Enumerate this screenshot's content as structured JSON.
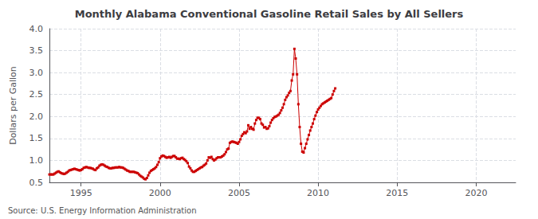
{
  "chart_data": {
    "type": "line",
    "title": "Monthly Alabama Conventional Gasoline Retail Sales by All Sellers",
    "ylabel": "Dollars per Gallon",
    "source": "Source: U.S. Energy Information Administration",
    "color": "#cc0000",
    "marker": "square",
    "line_style": "solid",
    "grid": true,
    "xlim": [
      1993.0,
      2022.5
    ],
    "ylim": [
      0.5,
      4.0
    ],
    "xticks": [
      1995,
      2000,
      2005,
      2010,
      2015,
      2020
    ],
    "yticks": [
      0.5,
      {
        "value": 1.0,
        "label": "1.0"
      },
      1.5,
      {
        "value": 2.0,
        "label": "2.0"
      },
      2.5,
      {
        "value": 3.0,
        "label": "3.0"
      },
      3.5,
      {
        "value": 4.0,
        "label": "4.0"
      }
    ],
    "x": [
      1993.0,
      1993.083,
      1993.167,
      1993.25,
      1993.333,
      1993.417,
      1993.5,
      1993.583,
      1993.667,
      1993.75,
      1993.833,
      1993.917,
      1994.0,
      1994.083,
      1994.167,
      1994.25,
      1994.333,
      1994.417,
      1994.5,
      1994.583,
      1994.667,
      1994.75,
      1994.833,
      1994.917,
      1995.0,
      1995.083,
      1995.167,
      1995.25,
      1995.333,
      1995.417,
      1995.5,
      1995.583,
      1995.667,
      1995.75,
      1995.833,
      1995.917,
      1996.0,
      1996.083,
      1996.167,
      1996.25,
      1996.333,
      1996.417,
      1996.5,
      1996.583,
      1996.667,
      1996.75,
      1996.833,
      1996.917,
      1997.0,
      1997.083,
      1997.167,
      1997.25,
      1997.333,
      1997.417,
      1997.5,
      1997.583,
      1997.667,
      1997.75,
      1997.833,
      1997.917,
      1998.0,
      1998.083,
      1998.167,
      1998.25,
      1998.333,
      1998.417,
      1998.5,
      1998.583,
      1998.667,
      1998.75,
      1998.833,
      1998.917,
      1999.0,
      1999.083,
      1999.167,
      1999.25,
      1999.333,
      1999.417,
      1999.5,
      1999.583,
      1999.667,
      1999.75,
      1999.833,
      1999.917,
      2000.0,
      2000.083,
      2000.167,
      2000.25,
      2000.333,
      2000.417,
      2000.5,
      2000.583,
      2000.667,
      2000.75,
      2000.833,
      2000.917,
      2001.0,
      2001.083,
      2001.167,
      2001.25,
      2001.333,
      2001.417,
      2001.5,
      2001.583,
      2001.667,
      2001.75,
      2001.833,
      2001.917,
      2002.0,
      2002.083,
      2002.167,
      2002.25,
      2002.333,
      2002.417,
      2002.5,
      2002.583,
      2002.667,
      2002.75,
      2002.833,
      2002.917,
      2003.0,
      2003.083,
      2003.167,
      2003.25,
      2003.333,
      2003.417,
      2003.5,
      2003.583,
      2003.667,
      2003.75,
      2003.833,
      2003.917,
      2004.0,
      2004.083,
      2004.167,
      2004.25,
      2004.333,
      2004.417,
      2004.5,
      2004.583,
      2004.667,
      2004.75,
      2004.833,
      2004.917,
      2005.0,
      2005.083,
      2005.167,
      2005.25,
      2005.333,
      2005.417,
      2005.5,
      2005.583,
      2005.667,
      2005.75,
      2005.833,
      2005.917,
      2006.0,
      2006.083,
      2006.167,
      2006.25,
      2006.333,
      2006.417,
      2006.5,
      2006.583,
      2006.667,
      2006.75,
      2006.833,
      2006.917,
      2007.0,
      2007.083,
      2007.167,
      2007.25,
      2007.333,
      2007.417,
      2007.5,
      2007.583,
      2007.667,
      2007.75,
      2007.833,
      2007.917,
      2008.0,
      2008.083,
      2008.167,
      2008.25,
      2008.333,
      2008.417,
      2008.5,
      2008.583,
      2008.667,
      2008.75,
      2008.833,
      2008.917,
      2009.0,
      2009.083,
      2009.167,
      2009.25,
      2009.333,
      2009.417,
      2009.5,
      2009.583,
      2009.667,
      2009.75,
      2009.833,
      2009.917,
      2010.0,
      2010.083,
      2010.167,
      2010.25,
      2010.333,
      2010.417,
      2010.5,
      2010.583,
      2010.667,
      2010.75,
      2010.833,
      2010.917,
      2011.0,
      2011.083
    ],
    "values": [
      0.68,
      0.68,
      0.68,
      0.68,
      0.7,
      0.72,
      0.74,
      0.75,
      0.73,
      0.71,
      0.7,
      0.69,
      0.7,
      0.72,
      0.74,
      0.77,
      0.78,
      0.79,
      0.8,
      0.81,
      0.8,
      0.79,
      0.78,
      0.77,
      0.78,
      0.8,
      0.83,
      0.84,
      0.85,
      0.84,
      0.83,
      0.83,
      0.82,
      0.81,
      0.79,
      0.78,
      0.82,
      0.84,
      0.88,
      0.9,
      0.91,
      0.9,
      0.88,
      0.86,
      0.85,
      0.83,
      0.82,
      0.82,
      0.83,
      0.83,
      0.84,
      0.84,
      0.84,
      0.85,
      0.84,
      0.84,
      0.83,
      0.81,
      0.79,
      0.77,
      0.76,
      0.74,
      0.74,
      0.74,
      0.74,
      0.73,
      0.72,
      0.71,
      0.68,
      0.65,
      0.63,
      0.61,
      0.58,
      0.57,
      0.6,
      0.66,
      0.72,
      0.76,
      0.78,
      0.8,
      0.82,
      0.85,
      0.9,
      0.96,
      1.05,
      1.09,
      1.11,
      1.1,
      1.08,
      1.06,
      1.07,
      1.08,
      1.06,
      1.08,
      1.1,
      1.1,
      1.07,
      1.04,
      1.04,
      1.03,
      1.05,
      1.06,
      1.03,
      1.01,
      0.98,
      0.94,
      0.86,
      0.82,
      0.77,
      0.74,
      0.74,
      0.76,
      0.78,
      0.8,
      0.82,
      0.84,
      0.85,
      0.88,
      0.9,
      0.93,
      1.0,
      1.07,
      1.06,
      1.08,
      1.03,
      1.0,
      1.02,
      1.05,
      1.07,
      1.07,
      1.07,
      1.09,
      1.11,
      1.14,
      1.19,
      1.25,
      1.27,
      1.4,
      1.42,
      1.43,
      1.42,
      1.41,
      1.4,
      1.38,
      1.42,
      1.48,
      1.56,
      1.6,
      1.64,
      1.62,
      1.66,
      1.8,
      1.72,
      1.76,
      1.72,
      1.7,
      1.84,
      1.92,
      1.97,
      1.97,
      1.94,
      1.84,
      1.81,
      1.75,
      1.76,
      1.72,
      1.73,
      1.78,
      1.86,
      1.92,
      1.96,
      1.99,
      2.0,
      2.02,
      2.04,
      2.08,
      2.14,
      2.2,
      2.28,
      2.38,
      2.44,
      2.48,
      2.54,
      2.58,
      2.82,
      2.96,
      3.54,
      3.32,
      2.96,
      2.28,
      1.76,
      1.38,
      1.2,
      1.18,
      1.28,
      1.38,
      1.48,
      1.58,
      1.68,
      1.76,
      1.84,
      1.94,
      2.02,
      2.1,
      2.16,
      2.2,
      2.24,
      2.28,
      2.3,
      2.32,
      2.34,
      2.36,
      2.38,
      2.4,
      2.42,
      2.5,
      2.58,
      2.64
    ]
  }
}
